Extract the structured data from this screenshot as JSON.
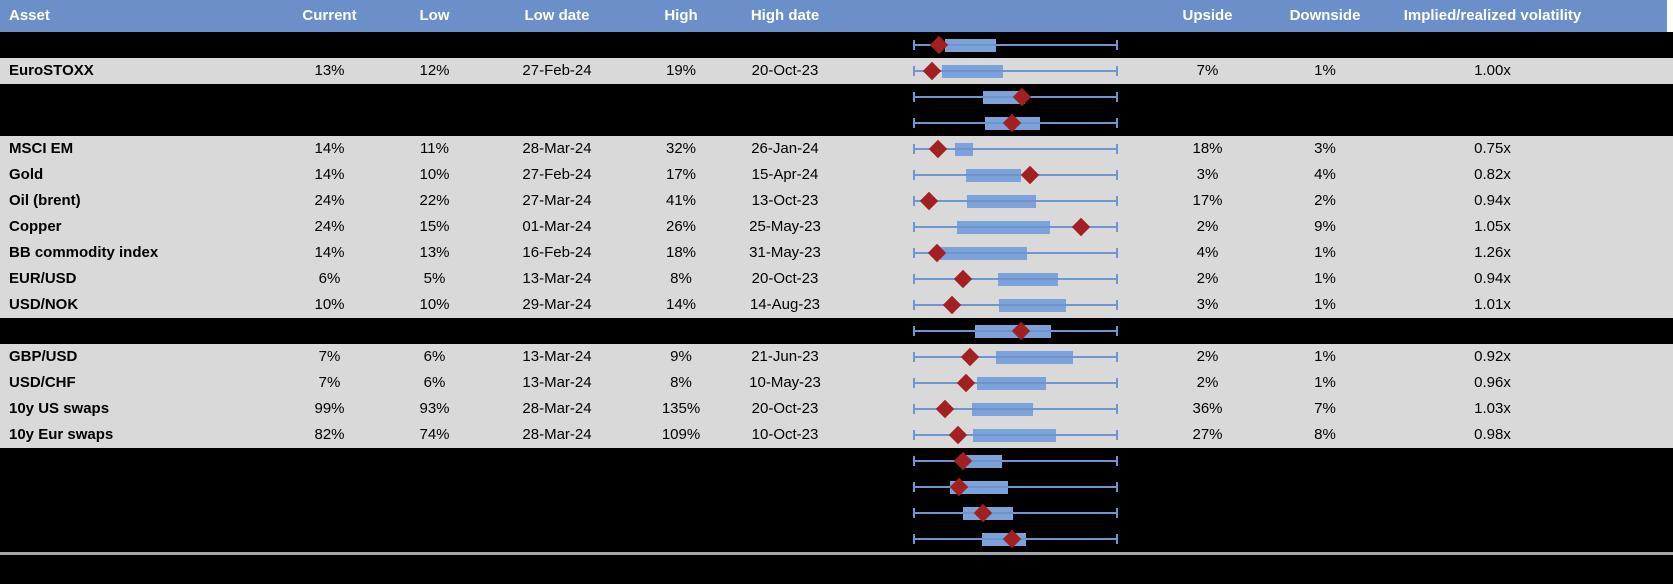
{
  "colors": {
    "header_bg": "#6a8fc9",
    "header_text": "#ffffff",
    "data_row_bg": "#d9d9d9",
    "hidden_row_bg": "#000000",
    "box_fill": "#7ca2d9",
    "whisker": "#6d96d2",
    "marker": "#a32022",
    "bottom_divider": "#a6a6a6"
  },
  "chart_data": {
    "type": "table",
    "title": "Implied volatility table with 12-month low/high box-whisker range and current marker",
    "embedded_chart_type": "boxplot",
    "boxplot_note": "Fractions are positions across each row's whisker span (whiskers run full width 0 to 1); 'marker' is the red diamond (current level), 'box' is the blue interquartile-style bar.",
    "columns": [
      "Asset",
      "Current",
      "Low",
      "Low date",
      "High",
      "High date",
      "Upside",
      "Downside",
      "Implied/realized volatility"
    ],
    "rows": [
      {
        "type": "hidden",
        "boxplot": {
          "whiskers": [
            0,
            1
          ],
          "box": [
            0.156,
            0.407
          ],
          "marker": 0.128
        }
      },
      {
        "type": "data",
        "asset": "EuroSTOXX",
        "current": "13%",
        "low": "12%",
        "low_date": "27-Feb-24",
        "high": "19%",
        "high_date": "20-Oct-23",
        "upside": "7%",
        "downside": "1%",
        "implied_realized": "1.00x",
        "boxplot": {
          "whiskers": [
            0,
            1
          ],
          "box": [
            0.14,
            0.44
          ],
          "marker": 0.094
        }
      },
      {
        "type": "hidden",
        "boxplot": {
          "whiskers": [
            0,
            1
          ],
          "box": [
            0.342,
            0.545
          ],
          "marker": 0.532
        }
      },
      {
        "type": "hidden",
        "boxplot": {
          "whiskers": [
            0,
            1
          ],
          "box": [
            0.35,
            0.618
          ],
          "marker": 0.484
        }
      },
      {
        "type": "data",
        "asset": "MSCI EM",
        "current": "14%",
        "low": "11%",
        "low_date": "28-Mar-24",
        "high": "32%",
        "high_date": "26-Jan-24",
        "upside": "18%",
        "downside": "3%",
        "implied_realized": "0.75x",
        "boxplot": {
          "whiskers": [
            0,
            1
          ],
          "box": [
            0.205,
            0.294
          ],
          "marker": 0.12
        }
      },
      {
        "type": "data",
        "asset": "Gold",
        "current": "14%",
        "low": "10%",
        "low_date": "27-Feb-24",
        "high": "17%",
        "high_date": "15-Apr-24",
        "upside": "3%",
        "downside": "4%",
        "implied_realized": "0.82x",
        "boxplot": {
          "whiskers": [
            0,
            1
          ],
          "box": [
            0.257,
            0.529
          ],
          "marker": 0.57
        }
      },
      {
        "type": "data",
        "asset": "Oil (brent)",
        "current": "24%",
        "low": "22%",
        "low_date": "27-Mar-24",
        "high": "41%",
        "high_date": "13-Oct-23",
        "upside": "17%",
        "downside": "2%",
        "implied_realized": "0.94x",
        "boxplot": {
          "whiskers": [
            0,
            1
          ],
          "box": [
            0.261,
            0.602
          ],
          "marker": 0.08
        }
      },
      {
        "type": "data",
        "asset": "Copper",
        "current": "24%",
        "low": "15%",
        "low_date": "01-Mar-24",
        "high": "26%",
        "high_date": "25-May-23",
        "upside": "2%",
        "downside": "9%",
        "implied_realized": "1.05x",
        "boxplot": {
          "whiskers": [
            0,
            1
          ],
          "box": [
            0.213,
            0.667
          ],
          "marker": 0.818
        }
      },
      {
        "type": "data",
        "asset": "BB commodity index",
        "current": "14%",
        "low": "13%",
        "low_date": "16-Feb-24",
        "high": "18%",
        "high_date": "31-May-23",
        "upside": "4%",
        "downside": "1%",
        "implied_realized": "1.26x",
        "boxplot": {
          "whiskers": [
            0,
            1
          ],
          "box": [
            0.131,
            0.554
          ],
          "marker": 0.115
        }
      },
      {
        "type": "data",
        "asset": "EUR/USD",
        "current": "6%",
        "low": "5%",
        "low_date": "13-Mar-24",
        "high": "8%",
        "high_date": "20-Oct-23",
        "upside": "2%",
        "downside": "1%",
        "implied_realized": "0.94x",
        "boxplot": {
          "whiskers": [
            0,
            1
          ],
          "box": [
            0.416,
            0.708
          ],
          "marker": 0.242
        }
      },
      {
        "type": "data",
        "asset": "USD/NOK",
        "current": "10%",
        "low": "10%",
        "low_date": "29-Mar-24",
        "high": "14%",
        "high_date": "14-Aug-23",
        "upside": "3%",
        "downside": "1%",
        "implied_realized": "1.01x",
        "boxplot": {
          "whiskers": [
            0,
            1
          ],
          "box": [
            0.42,
            0.748
          ],
          "marker": 0.192
        }
      },
      {
        "type": "hidden",
        "boxplot": {
          "whiskers": [
            0,
            1
          ],
          "box": [
            0.302,
            0.675
          ],
          "marker": 0.526
        }
      },
      {
        "type": "data",
        "asset": "GBP/USD",
        "current": "7%",
        "low": "6%",
        "low_date": "13-Mar-24",
        "high": "9%",
        "high_date": "21-Jun-23",
        "upside": "2%",
        "downside": "1%",
        "implied_realized": "0.92x",
        "boxplot": {
          "whiskers": [
            0,
            1
          ],
          "box": [
            0.407,
            0.781
          ],
          "marker": 0.278
        }
      },
      {
        "type": "data",
        "asset": "USD/CHF",
        "current": "7%",
        "low": "6%",
        "low_date": "13-Mar-24",
        "high": "8%",
        "high_date": "10-May-23",
        "upside": "2%",
        "downside": "1%",
        "implied_realized": "0.96x",
        "boxplot": {
          "whiskers": [
            0,
            1
          ],
          "box": [
            0.31,
            0.648
          ],
          "marker": 0.258
        }
      },
      {
        "type": "data",
        "asset": "10y US swaps",
        "current": "99%",
        "low": "93%",
        "low_date": "28-Mar-24",
        "high": "135%",
        "high_date": "20-Oct-23",
        "upside": "36%",
        "downside": "7%",
        "implied_realized": "1.03x",
        "boxplot": {
          "whiskers": [
            0,
            1
          ],
          "box": [
            0.286,
            0.586
          ],
          "marker": 0.156
        }
      },
      {
        "type": "data",
        "asset": "10y Eur swaps",
        "current": "82%",
        "low": "74%",
        "low_date": "28-Mar-24",
        "high": "109%",
        "high_date": "10-Oct-23",
        "upside": "27%",
        "downside": "8%",
        "implied_realized": "0.98x",
        "boxplot": {
          "whiskers": [
            0,
            1
          ],
          "box": [
            0.294,
            0.7
          ],
          "marker": 0.221
        }
      },
      {
        "type": "hidden",
        "boxplot": {
          "whiskers": [
            0,
            1
          ],
          "box": [
            0.245,
            0.432
          ],
          "marker": 0.242
        }
      },
      {
        "type": "hidden",
        "boxplot": {
          "whiskers": [
            0,
            1
          ],
          "box": [
            0.18,
            0.464
          ],
          "marker": 0.226
        }
      },
      {
        "type": "hidden",
        "boxplot": {
          "whiskers": [
            0,
            1
          ],
          "box": [
            0.242,
            0.489
          ],
          "marker": 0.343
        }
      },
      {
        "type": "hidden",
        "boxplot": {
          "whiskers": [
            0,
            1
          ],
          "box": [
            0.339,
            0.55
          ],
          "marker": 0.485
        }
      }
    ]
  }
}
